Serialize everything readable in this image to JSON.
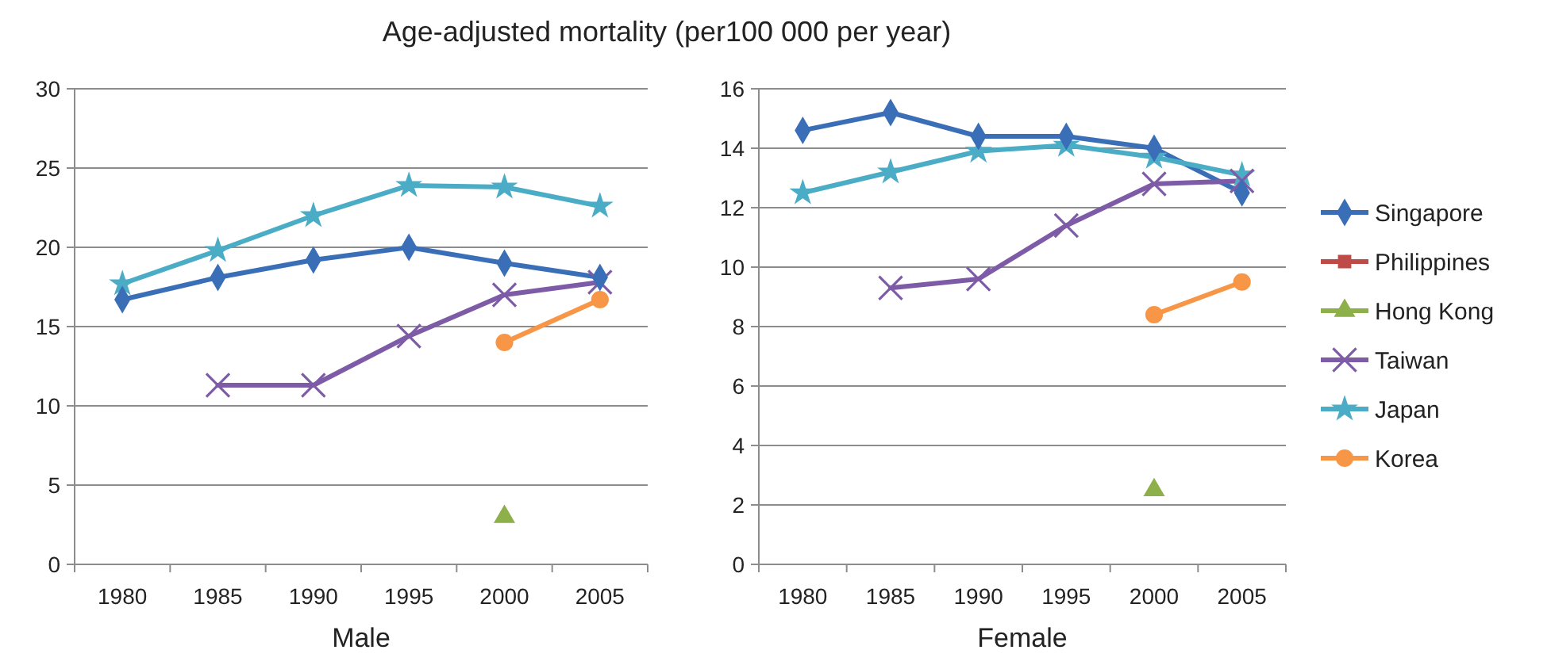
{
  "chart_data": [
    {
      "type": "line",
      "title": "Age-adjusted mortality (per100 000 per year)",
      "xlabel": "Male",
      "categories": [
        "1980",
        "1985",
        "1990",
        "1995",
        "2000",
        "2005"
      ],
      "ylim": [
        0,
        30
      ],
      "yticks": [
        0,
        5,
        10,
        15,
        20,
        25,
        30
      ],
      "grid": "y",
      "legend": false,
      "series": [
        {
          "color": "#3a6fb7",
          "marker": "diamond",
          "values": [
            16.7,
            18.1,
            19.2,
            20.0,
            19.0,
            18.1
          ]
        },
        {
          "color": "#be4b48",
          "marker": "square",
          "values": [
            null,
            null,
            null,
            null,
            null,
            null
          ]
        },
        {
          "color": "#8db04a",
          "marker": "triangle",
          "values": [
            null,
            null,
            null,
            null,
            3.0,
            null
          ]
        },
        {
          "color": "#7d5ba6",
          "marker": "cross",
          "values": [
            null,
            11.3,
            11.3,
            14.4,
            17.0,
            17.8
          ]
        },
        {
          "color": "#4bacc6",
          "marker": "star",
          "values": [
            17.7,
            19.8,
            22.0,
            23.9,
            23.8,
            22.6
          ]
        },
        {
          "color": "#f79646",
          "marker": "circle",
          "values": [
            null,
            null,
            null,
            null,
            14.0,
            16.7
          ]
        }
      ]
    },
    {
      "type": "line",
      "xlabel": "Female",
      "categories": [
        "1980",
        "1985",
        "1990",
        "1995",
        "2000",
        "2005"
      ],
      "ylim": [
        0,
        16
      ],
      "yticks": [
        0,
        2,
        4,
        6,
        8,
        10,
        12,
        14,
        16
      ],
      "grid": "y",
      "legend": "right",
      "series": [
        {
          "name": "Singapore",
          "color": "#3a6fb7",
          "marker": "diamond",
          "values": [
            14.6,
            15.2,
            14.4,
            14.4,
            14.0,
            12.5
          ]
        },
        {
          "name": "Philippines",
          "color": "#be4b48",
          "marker": "square",
          "values": [
            null,
            null,
            null,
            null,
            null,
            null
          ]
        },
        {
          "name": "Hong Kong",
          "color": "#8db04a",
          "marker": "triangle",
          "values": [
            null,
            null,
            null,
            null,
            2.5,
            null
          ]
        },
        {
          "name": "Taiwan",
          "color": "#7d5ba6",
          "marker": "cross",
          "values": [
            null,
            9.3,
            9.6,
            11.4,
            12.8,
            12.9
          ]
        },
        {
          "name": "Japan",
          "color": "#4bacc6",
          "marker": "star",
          "values": [
            12.5,
            13.2,
            13.9,
            14.1,
            13.7,
            13.1
          ]
        },
        {
          "name": "Korea",
          "color": "#f79646",
          "marker": "circle",
          "values": [
            null,
            null,
            null,
            null,
            8.4,
            9.5
          ]
        }
      ]
    }
  ]
}
